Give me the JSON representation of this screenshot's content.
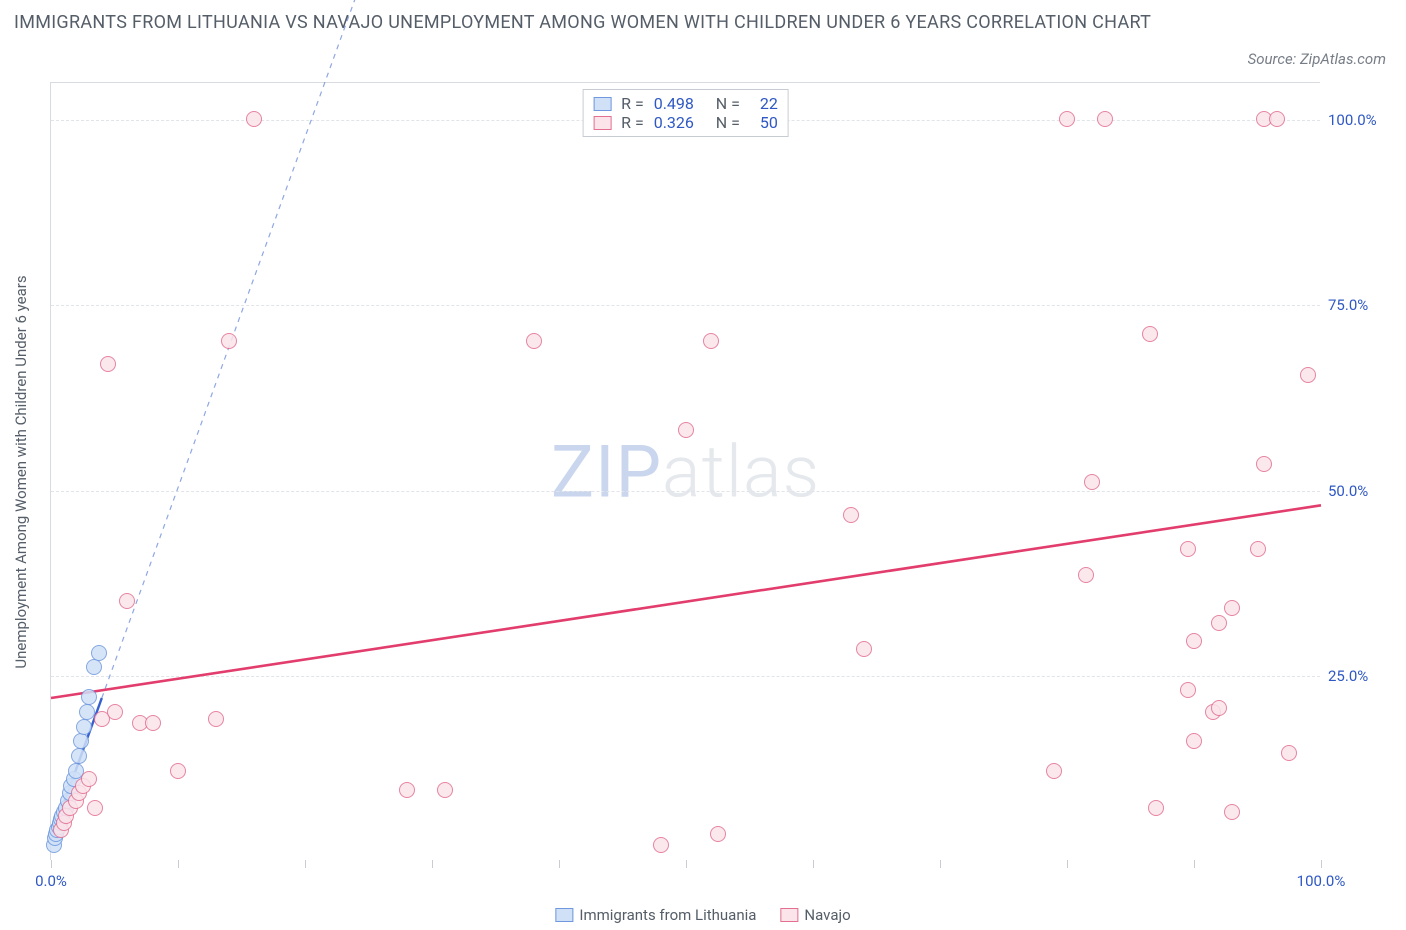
{
  "title": "IMMIGRANTS FROM LITHUANIA VS NAVAJO UNEMPLOYMENT AMONG WOMEN WITH CHILDREN UNDER 6 YEARS CORRELATION CHART",
  "source_label": "Source: ZipAtlas.com",
  "y_axis_title": "Unemployment Among Women with Children Under 6 years",
  "watermark": {
    "part1": "ZIP",
    "part2": "atlas"
  },
  "chart": {
    "type": "scatter",
    "background_color": "#ffffff",
    "grid_color": "#e1e4e8",
    "border_color": "#d8dbe0",
    "xlim": [
      0,
      100
    ],
    "ylim": [
      0,
      105
    ],
    "x_ticks": [
      0,
      10,
      20,
      30,
      40,
      50,
      60,
      70,
      80,
      90,
      100
    ],
    "x_tick_labels": {
      "0": "0.0%",
      "100": "100.0%"
    },
    "y_ticks": [
      25,
      50,
      75,
      100
    ],
    "y_tick_labels": {
      "25": "25.0%",
      "50": "50.0%",
      "75": "75.0%",
      "100": "100.0%"
    },
    "title_fontsize": 18,
    "label_fontsize": 15,
    "tick_label_color": "#2f58c4",
    "point_radius": 8
  },
  "series": [
    {
      "key": "lithuania",
      "label": "Immigrants from Lithuania",
      "fill": "#cfe0f7",
      "stroke": "#6f98de",
      "R": "0.498",
      "N": "22",
      "trend": {
        "x1": 0,
        "y1": 3,
        "x2": 4,
        "y2": 22,
        "extend_x2": 30,
        "extend_y2": 145,
        "color": "#355fcf",
        "width": 2.4,
        "dash": "5,5"
      },
      "points": [
        [
          0.2,
          2.0
        ],
        [
          0.3,
          3.0
        ],
        [
          0.4,
          3.5
        ],
        [
          0.5,
          4.0
        ],
        [
          0.6,
          4.5
        ],
        [
          0.7,
          5.0
        ],
        [
          0.8,
          5.5
        ],
        [
          0.9,
          6.0
        ],
        [
          1.0,
          6.5
        ],
        [
          1.2,
          7.0
        ],
        [
          1.3,
          8.0
        ],
        [
          1.5,
          9.0
        ],
        [
          1.6,
          10.0
        ],
        [
          1.8,
          11.0
        ],
        [
          2.0,
          12.0
        ],
        [
          2.2,
          14.0
        ],
        [
          2.4,
          16.0
        ],
        [
          2.6,
          18.0
        ],
        [
          2.8,
          20.0
        ],
        [
          3.0,
          22.0
        ],
        [
          3.4,
          26.0
        ],
        [
          3.8,
          28.0
        ]
      ]
    },
    {
      "key": "navajo",
      "label": "Navajo",
      "fill": "#fbe4ea",
      "stroke": "#e36f91",
      "R": "0.326",
      "N": "50",
      "trend": {
        "x1": 0,
        "y1": 22,
        "x2": 100,
        "y2": 48,
        "color": "#e23d6c",
        "width": 2.6
      },
      "points": [
        [
          0.8,
          4.0
        ],
        [
          1.0,
          5.0
        ],
        [
          1.2,
          6.0
        ],
        [
          1.5,
          7.0
        ],
        [
          2.0,
          8.0
        ],
        [
          2.2,
          9.0
        ],
        [
          2.5,
          10.0
        ],
        [
          3.0,
          11.0
        ],
        [
          3.5,
          7.0
        ],
        [
          4.0,
          19.0
        ],
        [
          4.5,
          67.0
        ],
        [
          5.0,
          20.0
        ],
        [
          6.0,
          35.0
        ],
        [
          7.0,
          18.5
        ],
        [
          8.0,
          18.5
        ],
        [
          10.0,
          12.0
        ],
        [
          13.0,
          19.0
        ],
        [
          14.0,
          70.0
        ],
        [
          16.0,
          100.0
        ],
        [
          28.0,
          9.5
        ],
        [
          31.0,
          9.5
        ],
        [
          38.0,
          70.0
        ],
        [
          48.0,
          2.0
        ],
        [
          50.0,
          58.0
        ],
        [
          52.0,
          70.0
        ],
        [
          52.5,
          3.5
        ],
        [
          63.0,
          46.5
        ],
        [
          64.0,
          28.5
        ],
        [
          79.0,
          12.0
        ],
        [
          80.0,
          100.0
        ],
        [
          81.5,
          38.5
        ],
        [
          82.0,
          51.0
        ],
        [
          83.0,
          100.0
        ],
        [
          86.5,
          71.0
        ],
        [
          87.0,
          7.0
        ],
        [
          89.5,
          23.0
        ],
        [
          89.5,
          42.0
        ],
        [
          90.0,
          16.0
        ],
        [
          90.0,
          29.5
        ],
        [
          91.5,
          20.0
        ],
        [
          92.0,
          20.5
        ],
        [
          92.0,
          32.0
        ],
        [
          93.0,
          6.5
        ],
        [
          93.0,
          34.0
        ],
        [
          95.0,
          42.0
        ],
        [
          95.5,
          53.5
        ],
        [
          95.5,
          100.0
        ],
        [
          96.5,
          100.0
        ],
        [
          97.5,
          14.5
        ],
        [
          99.0,
          65.5
        ]
      ]
    }
  ],
  "legend_top": {
    "R_label": "R =",
    "N_label": "N ="
  },
  "legend_bottom_items": [
    "lithuania",
    "navajo"
  ]
}
